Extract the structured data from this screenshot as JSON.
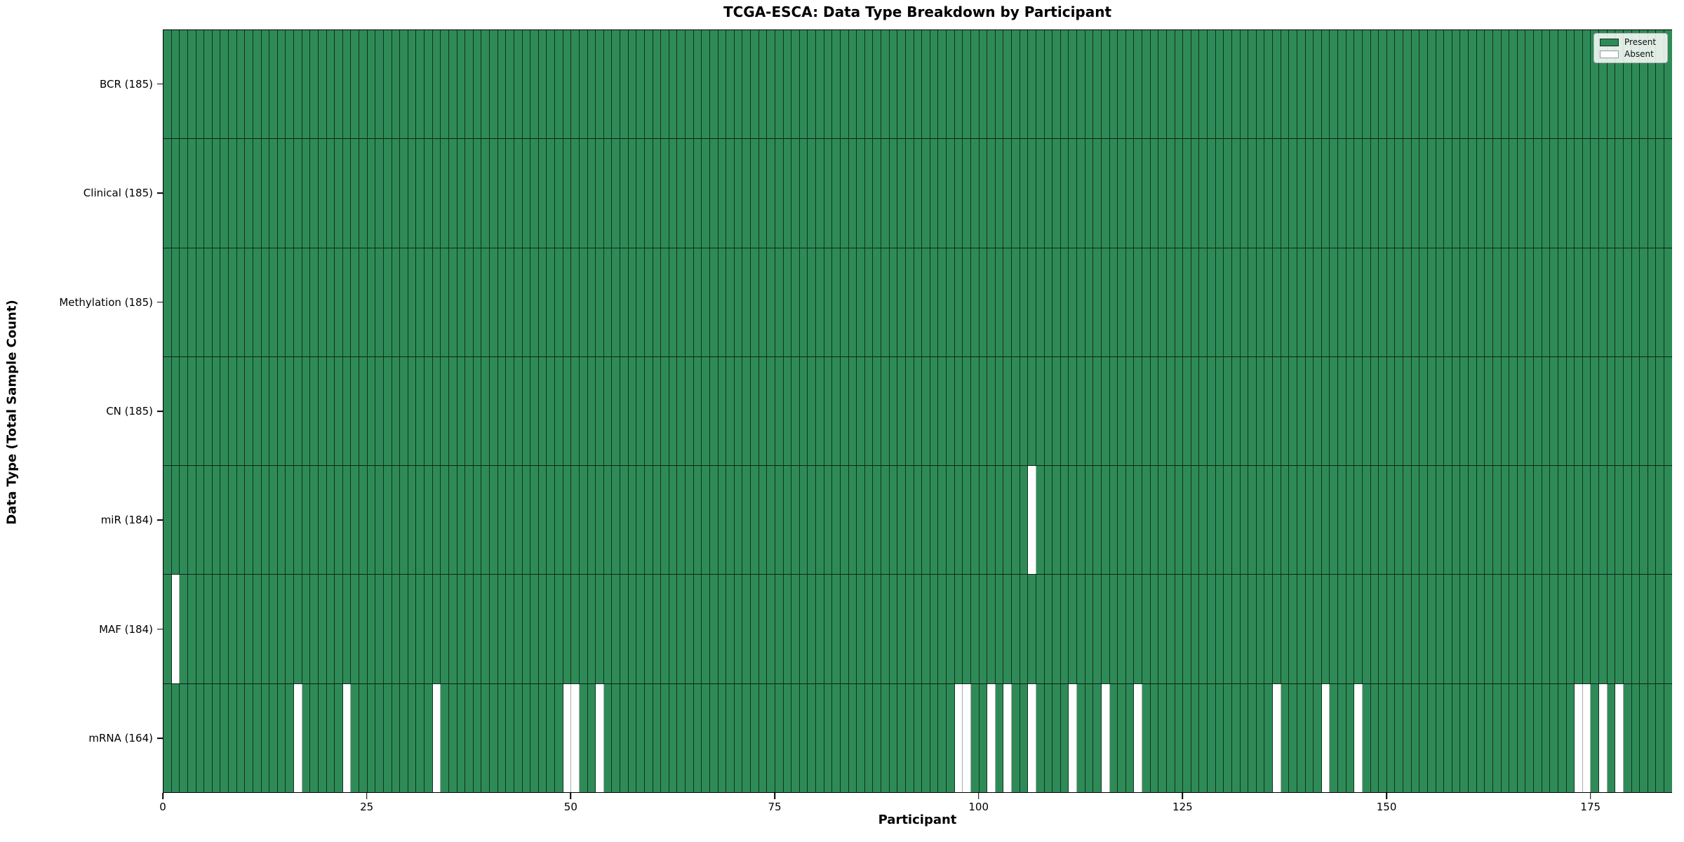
{
  "title": "TCGA-ESCA: Data Type Breakdown by Participant",
  "xlabel": "Participant",
  "ylabel": "Data Type (Total Sample Count)",
  "legend": {
    "present_label": "Present",
    "absent_label": "Absent"
  },
  "colors": {
    "present": "#2e8b57",
    "absent": "#ffffff",
    "bar_edge": "#102317",
    "absent_edge": "#ababab"
  },
  "chart_data": {
    "type": "heatmap",
    "title": "TCGA-ESCA: Data Type Breakdown by Participant",
    "xlabel": "Participant",
    "ylabel": "Data Type (Total Sample Count)",
    "n_participants": 185,
    "x_ticks": [
      0,
      25,
      50,
      75,
      100,
      125,
      150,
      175
    ],
    "xlim": [
      0,
      185
    ],
    "grid": false,
    "legend_position": "upper right",
    "cell_states": [
      "present",
      "absent"
    ],
    "rows": [
      {
        "name": "BCR",
        "label": "BCR (185)",
        "total": 185,
        "absent_participants": []
      },
      {
        "name": "Clinical",
        "label": "Clinical (185)",
        "total": 185,
        "absent_participants": []
      },
      {
        "name": "Methylation",
        "label": "Methylation (185)",
        "total": 185,
        "absent_participants": []
      },
      {
        "name": "CN",
        "label": "CN (185)",
        "total": 185,
        "absent_participants": []
      },
      {
        "name": "miR",
        "label": "miR (184)",
        "total": 184,
        "absent_participants": [
          106
        ]
      },
      {
        "name": "MAF",
        "label": "MAF (184)",
        "total": 184,
        "absent_participants": [
          1
        ]
      },
      {
        "name": "mRNA",
        "label": "mRNA (164)",
        "total": 164,
        "absent_participants": [
          16,
          22,
          33,
          49,
          50,
          53,
          97,
          98,
          101,
          103,
          106,
          111,
          115,
          119,
          136,
          142,
          146,
          173,
          174,
          176,
          178
        ]
      }
    ]
  }
}
